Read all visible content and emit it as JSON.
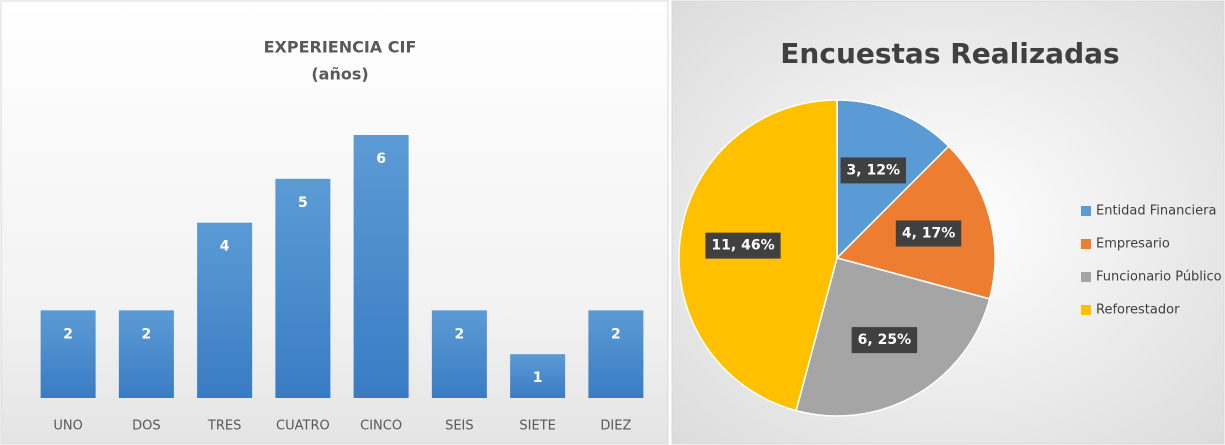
{
  "chart_data": [
    {
      "type": "bar",
      "title": "EXPERIENCIA CIF",
      "subtitle": "(años)",
      "categories": [
        "UNO",
        "DOS",
        "TRES",
        "CUATRO",
        "CINCO",
        "SEIS",
        "SIETE",
        "DIEZ"
      ],
      "values": [
        2,
        2,
        4,
        5,
        6,
        2,
        1,
        2
      ],
      "color": "#4a8ed6"
    },
    {
      "type": "pie",
      "title": "Encuestas Realizadas",
      "categories": [
        "Entidad Financiera",
        "Empresario",
        "Funcionario Público",
        "Reforestador"
      ],
      "values": [
        3,
        4,
        6,
        11
      ],
      "value_labels": [
        "3, 12%",
        "4, 17%",
        "6, 25%",
        "11, 46%"
      ],
      "colors": [
        "#5b9bd5",
        "#ed7d31",
        "#a5a5a5",
        "#ffc000"
      ],
      "legend": "right"
    }
  ]
}
